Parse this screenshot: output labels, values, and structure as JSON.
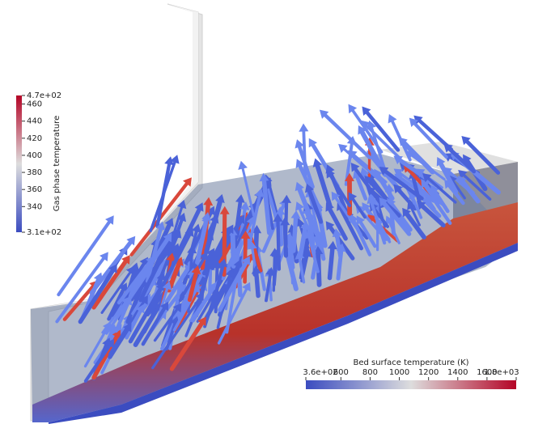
{
  "gas_colorbar": {
    "title": "Gas phase temperature",
    "ticks": [
      {
        "value": 470,
        "label": "4.7e+02"
      },
      460,
      440,
      420,
      400,
      380,
      360,
      340,
      {
        "value": 310,
        "label": "3.1e+02"
      }
    ]
  },
  "bed_colorbar": {
    "title": "Bed surface temperature (K)",
    "ticks": [
      {
        "value": 360,
        "label": "3.6e+02"
      },
      600,
      800,
      1000,
      1200,
      1400,
      1600,
      {
        "value": 1800,
        "label": "1.8e+03"
      }
    ]
  }
}
